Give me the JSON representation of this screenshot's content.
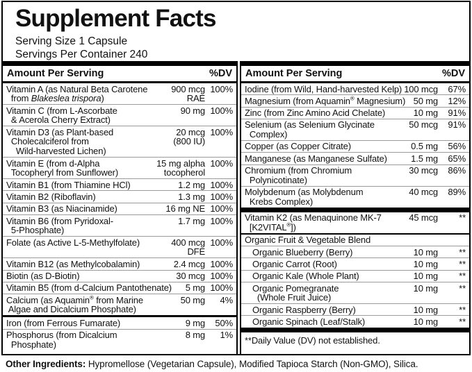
{
  "title": "Supplement Facts",
  "serving": {
    "size": "Serving Size 1 Capsule",
    "per_container": "Servings Per Container 240"
  },
  "table_header": {
    "amount": "Amount Per Serving",
    "dv": "%DV"
  },
  "left_column": {
    "rows": [
      {
        "name": [
          "Vitamin A (as Natural Beta Carotene",
          "  from _Blakeslea trispora_)"
        ],
        "amount": [
          "900 mcg",
          "RAE"
        ],
        "dv": "100%"
      },
      {
        "name": [
          "Vitamin C (from L-Ascorbate",
          "  & Acerola Cherry Extract)"
        ],
        "amount": [
          "90 mg"
        ],
        "dv": "100%"
      },
      {
        "name": [
          "Vitamin D3 (as Plant-based",
          "  Cholecalciferol from",
          "    Wild-harvested Lichen)"
        ],
        "amount": [
          "20 mcg",
          "(800 IU)"
        ],
        "dv": "100%"
      },
      {
        "name": [
          "Vitamin E (from d-Alpha",
          "  Tocopheryl from Sunflower)"
        ],
        "amount": [
          "15 mg alpha",
          "tocopherol"
        ],
        "dv": "100%"
      },
      {
        "name": [
          "Vitamin B1 (from Thiamine HCl)"
        ],
        "amount": [
          "1.2 mg"
        ],
        "dv": "100%"
      },
      {
        "name": [
          "Vitamin B2 (Riboflavin)"
        ],
        "amount": [
          "1.3 mg"
        ],
        "dv": "100%"
      },
      {
        "name": [
          "Vitamin B3 (as Niacinamide)"
        ],
        "amount": [
          "16 mg NE"
        ],
        "dv": "100%"
      },
      {
        "name": [
          "Vitamin B6 (from Pyridoxal-",
          "  5-Phosphate)"
        ],
        "amount": [
          "1.7 mg"
        ],
        "dv": "100%"
      },
      {
        "name": [
          "Folate (as Active L-5-Methylfolate)"
        ],
        "amount": [
          "400 mcg",
          "DFE"
        ],
        "dv": "100%"
      },
      {
        "name": [
          "Vitamin B12 (as Methylcobalamin)"
        ],
        "amount": [
          "2.4 mcg"
        ],
        "dv": "100%"
      },
      {
        "name": [
          "Biotin (as D-Biotin)"
        ],
        "amount": [
          "30 mcg"
        ],
        "dv": "100%"
      },
      {
        "name": [
          "Vitamin B5 (from d-Calcium Pantothenate)"
        ],
        "amount": [
          "5 mg"
        ],
        "dv": "100%"
      },
      {
        "name": [
          "Calcium (as Aquamin^®^ from Marine",
          " Algae and Dicalcium Phosphate)"
        ],
        "amount": [
          "50 mg"
        ],
        "dv": "4%"
      },
      {
        "name": [
          "Iron (from Ferrous Fumarate)"
        ],
        "amount": [
          "9 mg"
        ],
        "dv": "50%",
        "divider": "medium"
      },
      {
        "name": [
          "Phosphorus (from Dicalcium",
          "  Phosphate)"
        ],
        "amount": [
          "8 mg"
        ],
        "dv": "1%"
      }
    ]
  },
  "right_column": {
    "rows": [
      {
        "name": [
          "Iodine (from Wild, Hand-harvested Kelp)"
        ],
        "amount": [
          "100 mcg"
        ],
        "dv": "67%"
      },
      {
        "name": [
          "Magnesium (from Aquamin^®^ Magnesium)"
        ],
        "amount": [
          "50 mg"
        ],
        "dv": "12%"
      },
      {
        "name": [
          "Zinc (from Zinc Amino Acid Chelate)"
        ],
        "amount": [
          "10 mg"
        ],
        "dv": "91%"
      },
      {
        "name": [
          "Selenium (as Selenium Glycinate",
          "  Complex)"
        ],
        "amount": [
          "50 mcg"
        ],
        "dv": "91%"
      },
      {
        "name": [
          "Copper (as Copper Citrate)"
        ],
        "amount": [
          "0.5 mg"
        ],
        "dv": "56%"
      },
      {
        "name": [
          "Manganese (as Manganese Sulfate)"
        ],
        "amount": [
          "1.5 mg"
        ],
        "dv": "65%"
      },
      {
        "name": [
          "Chromium (from Chromium",
          "  Polynicotinate)"
        ],
        "amount": [
          "30 mcg"
        ],
        "dv": "86%"
      },
      {
        "name": [
          "Molybdenum (as Molybdenum",
          "  Krebs Complex)"
        ],
        "amount": [
          "40 mcg"
        ],
        "dv": "89%"
      },
      {
        "name": [
          "Vitamin K2 (as Menaquinone MK-7",
          "  [K2VITAL^®^])"
        ],
        "amount": [
          "45 mcg"
        ],
        "dv": "**",
        "divider": "thick"
      },
      {
        "type": "section",
        "name": [
          "Organic Fruit & Vegetable Blend"
        ],
        "divider": "dark"
      },
      {
        "name": [
          "Organic Blueberry (Berry)"
        ],
        "amount": [
          "10 mg"
        ],
        "dv": "**",
        "indent": true
      },
      {
        "name": [
          "Organic Carrot (Root)"
        ],
        "amount": [
          "10 mg"
        ],
        "dv": "**",
        "indent": true
      },
      {
        "name": [
          "Organic Kale (Whole Plant)"
        ],
        "amount": [
          "10 mg"
        ],
        "dv": "**",
        "indent": true
      },
      {
        "name": [
          "Organic Pomegranate",
          "  (Whole Fruit Juice)"
        ],
        "amount": [
          "10 mg"
        ],
        "dv": "**",
        "indent": true
      },
      {
        "name": [
          "Organic Raspberry (Berry)"
        ],
        "amount": [
          "10 mg"
        ],
        "dv": "**",
        "indent": true
      },
      {
        "name": [
          "Organic Spinach (Leaf/Stalk)"
        ],
        "amount": [
          "10 mg"
        ],
        "dv": "**",
        "indent": true
      },
      {
        "type": "footnote",
        "text": "**Daily Value (DV) not established.",
        "divider": "thick"
      }
    ]
  },
  "other_ingredients": {
    "label": "Other Ingredients:",
    "text": " Hypromellose (Vegetarian Capsule), Modified Tapioca Starch (Non-GMO), Silica."
  },
  "colors": {
    "text": "#111111",
    "bar": "#000000",
    "separator": "#9b9b9b",
    "background": "#ffffff"
  }
}
